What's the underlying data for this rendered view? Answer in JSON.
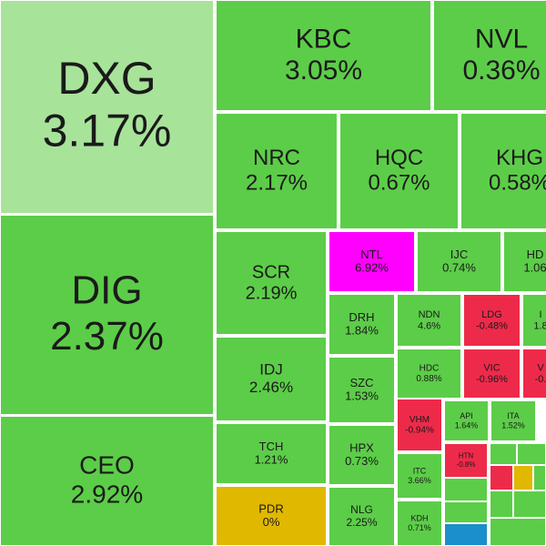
{
  "chart_data": {
    "type": "treemap",
    "categories": [
      "DXG",
      "DIG",
      "CEO",
      "KBC",
      "NVL",
      "NRC",
      "HQC",
      "KHG",
      "SCR",
      "NTL",
      "IJC",
      "HD",
      "DRH",
      "NDN",
      "LDG",
      "I",
      "IDJ",
      "SZC",
      "HDC",
      "VIC",
      "V",
      "TCH",
      "HPX",
      "VHM",
      "API",
      "ITA",
      "ITC",
      "HTN",
      "PDR",
      "NLG",
      "KDH"
    ],
    "values": [
      3.17,
      2.37,
      2.92,
      3.05,
      0.36,
      2.17,
      0.67,
      0.58,
      2.19,
      6.92,
      0.74,
      1.06,
      1.84,
      4.6,
      -0.48,
      1.8,
      2.46,
      1.53,
      0.88,
      -0.96,
      -0.0,
      1.21,
      0.73,
      -0.94,
      1.64,
      1.52,
      3.66,
      -0.8,
      0,
      2.25,
      0.71
    ],
    "value_labels": [
      "3.17%",
      "2.37%",
      "2.92%",
      "3.05%",
      "0.36%",
      "2.17%",
      "0.67%",
      "0.58%",
      "2.19%",
      "6.92%",
      "0.74%",
      "1.06",
      "1.84%",
      "4.6%",
      "-0.48%",
      "1.8",
      "2.46%",
      "1.53%",
      "0.88%",
      "-0.96%",
      "-0.",
      "1.21%",
      "0.73%",
      "-0.94%",
      "1.64%",
      "1.52%",
      "3.66%",
      "-0.8%",
      "0%",
      "2.25%",
      "0.71%"
    ],
    "colors": [
      "#a8e39a",
      "#5ccd48",
      "#5ccd48",
      "#5ccd48",
      "#5ccd48",
      "#5ccd48",
      "#5ccd48",
      "#5ccd48",
      "#5ccd48",
      "#ff00ff",
      "#5ccd48",
      "#5ccd48",
      "#5ccd48",
      "#5ccd48",
      "#ee2a4a",
      "#5ccd48",
      "#5ccd48",
      "#5ccd48",
      "#5ccd48",
      "#ee2a4a",
      "#ee2a4a",
      "#5ccd48",
      "#5ccd48",
      "#ee2a4a",
      "#5ccd48",
      "#5ccd48",
      "#5ccd48",
      "#ee2a4a",
      "#e0b800",
      "#5ccd48",
      "#5ccd48"
    ]
  }
}
